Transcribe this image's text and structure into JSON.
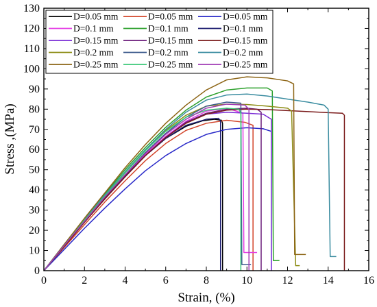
{
  "chart_data": {
    "type": "line",
    "title": "",
    "xlabel": "Strain, (%)",
    "ylabel": "Stress ,(MPa)",
    "xlim": [
      0,
      16
    ],
    "ylim": [
      0,
      130
    ],
    "xticks": [
      "0",
      "2",
      "4",
      "6",
      "8",
      "10",
      "12",
      "14",
      "16"
    ],
    "yticks": [
      "0",
      "10",
      "20",
      "30",
      "40",
      "50",
      "60",
      "70",
      "80",
      "90",
      "100",
      "110",
      "120",
      "130"
    ],
    "grid": false,
    "legend_position": "top-left",
    "series": [
      {
        "name": "D=0.05 mm",
        "color": "#000000",
        "x": [
          0,
          1,
          2,
          3,
          4,
          5,
          6,
          7,
          7.8,
          8.4,
          8.75,
          8.8,
          8.8
        ],
        "y": [
          0,
          12.5,
          24.5,
          36,
          47,
          57,
          65.5,
          71.5,
          74.2,
          75,
          74.5,
          73,
          0
        ]
      },
      {
        "name": "D=0.05 mm",
        "color": "#d2442a",
        "x": [
          0,
          1,
          2,
          3,
          4,
          5,
          6,
          7,
          8,
          9,
          9.9,
          10.3,
          10.3
        ],
        "y": [
          0,
          11.5,
          22.8,
          34,
          44.5,
          54.5,
          63,
          69.5,
          73,
          74.5,
          73.5,
          72,
          0
        ]
      },
      {
        "name": "D=0.05 mm",
        "color": "#2828c8",
        "x": [
          0,
          1,
          2,
          3,
          4,
          5,
          6,
          7,
          8,
          9,
          10,
          10.8,
          11.2,
          11.2
        ],
        "y": [
          0,
          10.5,
          21,
          31,
          40.5,
          49.5,
          57,
          63,
          67.5,
          70,
          70.8,
          70.3,
          69,
          0
        ]
      },
      {
        "name": "D=0.1 mm",
        "color": "#e43ce4",
        "x": [
          0,
          1,
          2,
          3,
          4,
          5,
          6,
          7,
          8,
          9,
          9.8,
          9.85,
          10.5
        ],
        "y": [
          0,
          12.5,
          24.5,
          36,
          47,
          57.5,
          66.5,
          74,
          79,
          80.5,
          78,
          9,
          9
        ]
      },
      {
        "name": "D=0.1 mm",
        "color": "#2ca02c",
        "x": [
          0,
          1,
          2,
          3,
          4,
          5,
          6,
          7,
          8,
          9,
          10,
          11,
          11.25,
          11.3,
          11.6
        ],
        "y": [
          0,
          13,
          25.5,
          38,
          50,
          61,
          71,
          79.5,
          86,
          89.5,
          90.5,
          90.5,
          89,
          5,
          5
        ]
      },
      {
        "name": "D=0.1 mm",
        "color": "#1a1a6e",
        "x": [
          0,
          1,
          2,
          3,
          4,
          5,
          6,
          7,
          8,
          8.6,
          8.7,
          8.7
        ],
        "y": [
          0,
          12.5,
          24.5,
          36,
          47,
          57,
          65.5,
          72,
          75,
          75.5,
          74,
          0
        ]
      },
      {
        "name": "D=0.15 mm",
        "color": "#7a2bd6",
        "x": [
          0,
          1,
          2,
          3,
          4,
          5,
          6,
          7,
          8,
          9,
          10,
          10.8,
          11.2,
          11.2
        ],
        "y": [
          0,
          12,
          24,
          35.5,
          46.5,
          57,
          66,
          73.5,
          77.5,
          78.5,
          78,
          77.5,
          75,
          0
        ]
      },
      {
        "name": "D=0.15 mm",
        "color": "#6a1a7a",
        "x": [
          0,
          1,
          2,
          3,
          4,
          5,
          6,
          7,
          8,
          9,
          10,
          10.5,
          10.7,
          10.7
        ],
        "y": [
          0,
          12,
          24,
          35.5,
          46.5,
          57,
          66,
          73.5,
          78,
          80,
          80.5,
          80,
          78.5,
          0
        ]
      },
      {
        "name": "D=0.15 mm",
        "color": "#7a1a1a",
        "x": [
          0,
          1,
          2,
          3,
          4,
          5,
          6,
          7,
          8,
          9,
          10,
          11,
          12,
          13,
          14,
          14.7,
          14.8,
          14.8
        ],
        "y": [
          0,
          12,
          24,
          35.5,
          46.5,
          57,
          66,
          73,
          77.5,
          79.5,
          80,
          79.8,
          79.3,
          78.8,
          78.3,
          78,
          77,
          0
        ]
      },
      {
        "name": "D=0.2 mm",
        "color": "#8c8c14",
        "x": [
          0,
          1,
          2,
          3,
          4,
          5,
          6,
          7,
          8,
          9,
          10,
          11,
          12,
          12.2,
          12.4,
          12.6
        ],
        "y": [
          0,
          12.5,
          25,
          37,
          48.5,
          59.5,
          69.5,
          77,
          81.5,
          82.5,
          82.3,
          81.5,
          80.5,
          79,
          2.5,
          2.5
        ]
      },
      {
        "name": "D=0.2 mm",
        "color": "#3c5a8c",
        "x": [
          0,
          1,
          2,
          3,
          4,
          5,
          6,
          7,
          8,
          9,
          9.7,
          9.75,
          10.2
        ],
        "y": [
          0,
          12.5,
          24.5,
          36.5,
          47.5,
          58.5,
          68,
          76,
          81.5,
          83.5,
          83,
          3,
          3
        ]
      },
      {
        "name": "D=0.2 mm",
        "color": "#3a8ca0",
        "x": [
          0,
          1,
          2,
          3,
          4,
          5,
          6,
          7,
          8,
          9,
          10,
          11,
          12,
          13,
          13.8,
          14,
          14.1,
          14.4
        ],
        "y": [
          0,
          13,
          25.5,
          37.5,
          49,
          60,
          70,
          78.5,
          84.5,
          87,
          87.5,
          86.5,
          85,
          83.5,
          82,
          80,
          7,
          7
        ]
      },
      {
        "name": "D=0.25 mm",
        "color": "#8c6414",
        "x": [
          0,
          1,
          2,
          3,
          4,
          5,
          6,
          7,
          8,
          9,
          10,
          11,
          12,
          12.3,
          12.35,
          12.9
        ],
        "y": [
          0,
          13,
          26,
          38.5,
          51,
          62.5,
          73,
          82,
          89.5,
          94.5,
          96,
          95.5,
          94,
          92.5,
          8,
          8
        ]
      },
      {
        "name": "D=0.25 mm",
        "color": "#3cc878",
        "x": [
          0,
          1,
          2,
          3,
          4,
          5,
          6,
          7,
          8,
          9,
          9.6,
          9.7,
          9.7
        ],
        "y": [
          0,
          12.5,
          25,
          37,
          48.5,
          59.5,
          69,
          76,
          79.5,
          80.5,
          80,
          78,
          0
        ]
      },
      {
        "name": "D=0.25 mm",
        "color": "#a03cb4",
        "x": [
          0,
          1,
          2,
          3,
          4,
          5,
          6,
          7,
          8,
          9,
          9.9,
          10.1,
          10.1
        ],
        "y": [
          0,
          12.5,
          24.5,
          36.5,
          47.5,
          58,
          67.5,
          75,
          80.5,
          82.5,
          82,
          80,
          0
        ]
      }
    ]
  }
}
